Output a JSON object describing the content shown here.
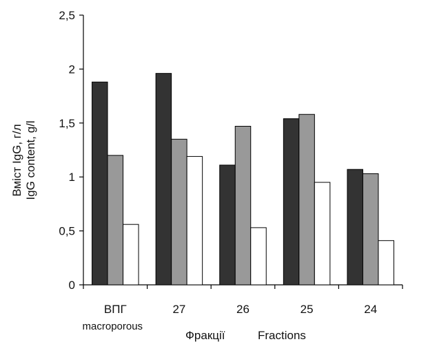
{
  "chart_data": {
    "type": "bar",
    "categories": [
      "ВПГ",
      "27",
      "26",
      "25",
      "24"
    ],
    "category_sublabels": [
      "macroporous",
      "",
      "",
      "",
      ""
    ],
    "series": [
      {
        "values": [
          1.88,
          1.96,
          1.11,
          1.54,
          1.07
        ],
        "color": "#333333"
      },
      {
        "values": [
          1.2,
          1.35,
          1.47,
          1.58,
          1.03
        ],
        "color": "#999999"
      },
      {
        "values": [
          0.56,
          1.19,
          0.53,
          0.95,
          0.41
        ],
        "color": "#ffffff"
      }
    ],
    "ylim": [
      0,
      2.5
    ],
    "yticks": [
      "0",
      "0,5",
      "1",
      "1,5",
      "2",
      "2,5"
    ],
    "ylabel_line1": "Вміст IgG, г/л",
    "ylabel_line2": "IgG content, g/l",
    "xlabel_part1": "Фракції",
    "xlabel_part2": "Fractions",
    "grid": false,
    "bar_stroke": "#000000"
  }
}
